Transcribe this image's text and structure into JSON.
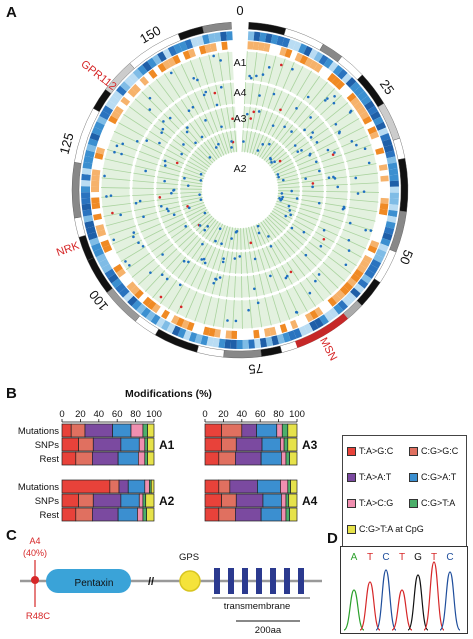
{
  "panels": {
    "a": "A",
    "b": "B",
    "c": "C",
    "d": "D"
  },
  "circos": {
    "ring_labels": [
      "A1",
      "A4",
      "A3",
      "A2"
    ],
    "position_ticks": [
      "0",
      "25",
      "50",
      "75",
      "100",
      "125",
      "150"
    ],
    "genes": [
      {
        "name": "GPR112",
        "color": "#d62728"
      },
      {
        "name": "NRK",
        "color": "#d62728"
      },
      {
        "name": "MSN",
        "color": "#d62728"
      }
    ]
  },
  "panel_b": {
    "title": "Modifications (%)",
    "axis_ticks": [
      "0",
      "20",
      "40",
      "60",
      "80",
      "100"
    ],
    "row_labels": [
      "Mutations",
      "SNPs",
      "Rest"
    ],
    "category_colors": [
      "#e8423a",
      "#e07060",
      "#7b4aa0",
      "#3b8fd0",
      "#f08fb0",
      "#4caf6a",
      "#e6e24a"
    ],
    "groups": [
      {
        "name": "A1",
        "rows": [
          [
            0.1,
            0.15,
            0.3,
            0.2,
            0.13,
            0.05,
            0.07
          ],
          [
            0.18,
            0.16,
            0.3,
            0.2,
            0.06,
            0.03,
            0.07
          ],
          [
            0.15,
            0.18,
            0.28,
            0.22,
            0.07,
            0.03,
            0.07
          ]
        ]
      },
      {
        "name": "A3",
        "rows": [
          [
            0.18,
            0.22,
            0.16,
            0.22,
            0.06,
            0.06,
            0.1
          ],
          [
            0.18,
            0.16,
            0.28,
            0.2,
            0.04,
            0.04,
            0.1
          ],
          [
            0.15,
            0.18,
            0.28,
            0.22,
            0.05,
            0.04,
            0.08
          ]
        ]
      },
      {
        "name": "A2",
        "rows": [
          [
            0.52,
            0.1,
            0.1,
            0.18,
            0.05,
            0.02,
            0.03
          ],
          [
            0.18,
            0.16,
            0.3,
            0.2,
            0.04,
            0.03,
            0.09
          ],
          [
            0.15,
            0.18,
            0.28,
            0.21,
            0.06,
            0.04,
            0.08
          ]
        ]
      },
      {
        "name": "A4",
        "rows": [
          [
            0.15,
            0.12,
            0.3,
            0.25,
            0.08,
            0.03,
            0.07
          ],
          [
            0.18,
            0.16,
            0.29,
            0.2,
            0.05,
            0.03,
            0.09
          ],
          [
            0.15,
            0.18,
            0.28,
            0.22,
            0.05,
            0.04,
            0.08
          ]
        ]
      }
    ],
    "legend": [
      {
        "label": "T:A>G:C",
        "color": "#e8423a"
      },
      {
        "label": "C:G>G:C",
        "color": "#e07060"
      },
      {
        "label": "T:A>A:T",
        "color": "#7b4aa0"
      },
      {
        "label": "C:G>A:T",
        "color": "#3b8fd0"
      },
      {
        "label": "T:A>C:G",
        "color": "#f08fb0"
      },
      {
        "label": "C:G>T:A",
        "color": "#4caf6a"
      },
      {
        "label": "C:G>T:A at CpG",
        "color": "#e6e24a"
      }
    ]
  },
  "panel_c": {
    "variant_label": "A4",
    "variant_pct": "(40%)",
    "mutation": "R48C",
    "domain_pentaxin": "Pentaxin",
    "domain_gps": "GPS",
    "domain_tm": "transmembrane",
    "scale_bar": "200aa",
    "break_mark": "//"
  },
  "panel_d": {
    "bases": [
      {
        "b": "A",
        "color": "#2ca02c"
      },
      {
        "b": "T",
        "color": "#d62728"
      },
      {
        "b": "C",
        "color": "#1f4e9c"
      },
      {
        "b": "T",
        "color": "#d62728"
      },
      {
        "b": "G",
        "color": "#111111"
      },
      {
        "b": "T",
        "color": "#d62728"
      },
      {
        "b": "C",
        "color": "#1f4e9c"
      }
    ]
  }
}
